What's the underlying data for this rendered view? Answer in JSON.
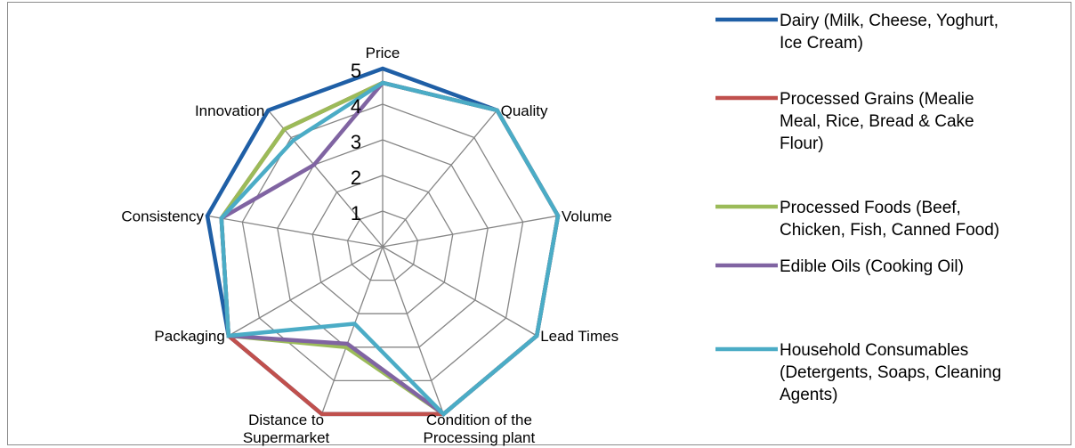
{
  "chart_data": {
    "type": "radar",
    "axes": [
      "Price",
      "Quality",
      "Volume",
      "Lead Times",
      "Condition of the Processing plant",
      "Distance to Supermarket",
      "Packaging",
      "Consistency",
      "Innovation"
    ],
    "axis_label_lines": [
      [
        "Price"
      ],
      [
        "Quality"
      ],
      [
        "Volume"
      ],
      [
        "Lead Times"
      ],
      [
        "Condition of the",
        "Processing plant"
      ],
      [
        "Distance to",
        "Supermarket"
      ],
      [
        "Packaging"
      ],
      [
        "Consistency"
      ],
      [
        "Innovation"
      ]
    ],
    "r_range": [
      0,
      5
    ],
    "r_ticks": [
      1,
      2,
      3,
      4,
      5
    ],
    "grid": true,
    "legend_position": "right",
    "series": [
      {
        "name": "Dairy (Milk, Cheese, Yoghurt, Ice Cream)",
        "legend_lines": [
          "Dairy (Milk, Cheese, Yoghurt,",
          "Ice Cream)"
        ],
        "color": "#1f5fa6",
        "values": [
          5,
          5,
          5,
          5,
          5,
          5,
          5,
          5,
          5
        ]
      },
      {
        "name": "Processed Grains (Mealie Meal, Rice, Bread & Cake Flour)",
        "legend_lines": [
          "Processed Grains (Mealie",
          "Meal, Rice, Bread & Cake",
          "Flour)"
        ],
        "color": "#c0504d",
        "values": [
          4.6,
          5,
          5,
          5,
          5,
          5,
          5,
          4.6,
          4.3
        ]
      },
      {
        "name": "Processed Foods (Beef, Chicken, Fish, Canned Food)",
        "legend_lines": [
          "Processed Foods (Beef,",
          "Chicken, Fish, Canned Food)"
        ],
        "color": "#9bbb59",
        "values": [
          4.6,
          5,
          5,
          5,
          5,
          3.0,
          5,
          4.6,
          4.3
        ]
      },
      {
        "name": "Edible Oils (Cooking  Oil)",
        "legend_lines": [
          "Edible Oils (Cooking  Oil)"
        ],
        "color": "#8064a2",
        "values": [
          4.6,
          5,
          5,
          5,
          5,
          2.9,
          5,
          4.6,
          3.0
        ]
      },
      {
        "name": "Household Consumables (Detergents, Soaps, Cleaning Agents)",
        "legend_lines": [
          "Household Consumables",
          "(Detergents, Soaps, Cleaning",
          "Agents)"
        ],
        "color": "#4bacc6",
        "values": [
          4.6,
          5,
          5,
          5,
          5,
          2.3,
          5,
          4.6,
          3.9
        ]
      }
    ]
  }
}
